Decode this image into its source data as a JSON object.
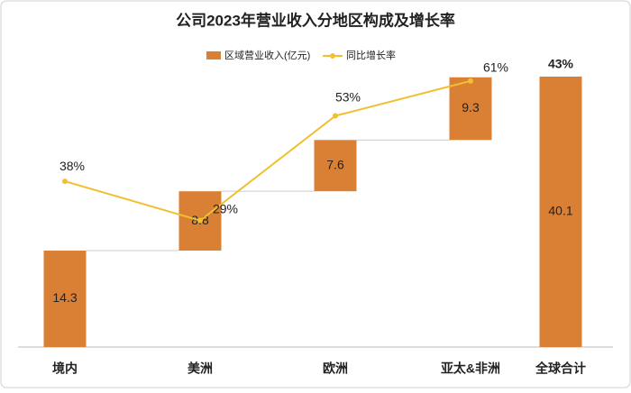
{
  "chart_data": {
    "type": "waterfall",
    "title": "公司2023年营业收入分地区构成及增长率",
    "categories": [
      "境内",
      "美洲",
      "欧洲",
      "亚太&非洲",
      "全球合计"
    ],
    "last_is_total": true,
    "ylim": [
      0,
      40.1
    ],
    "y2lim": [
      0,
      62
    ],
    "series": [
      {
        "name": "区域营业收入(亿元)",
        "color": "#d98035",
        "values": [
          14.3,
          8.8,
          7.6,
          9.3,
          40.1
        ]
      },
      {
        "name": "同比增长率",
        "color": "#f0c030",
        "axis": "y2",
        "values": [
          38,
          29,
          53,
          61,
          null
        ],
        "value_labels": [
          "38%",
          "29%",
          "53%",
          "61%",
          null
        ]
      }
    ],
    "total_growth": 43,
    "total_growth_label": "43%"
  }
}
